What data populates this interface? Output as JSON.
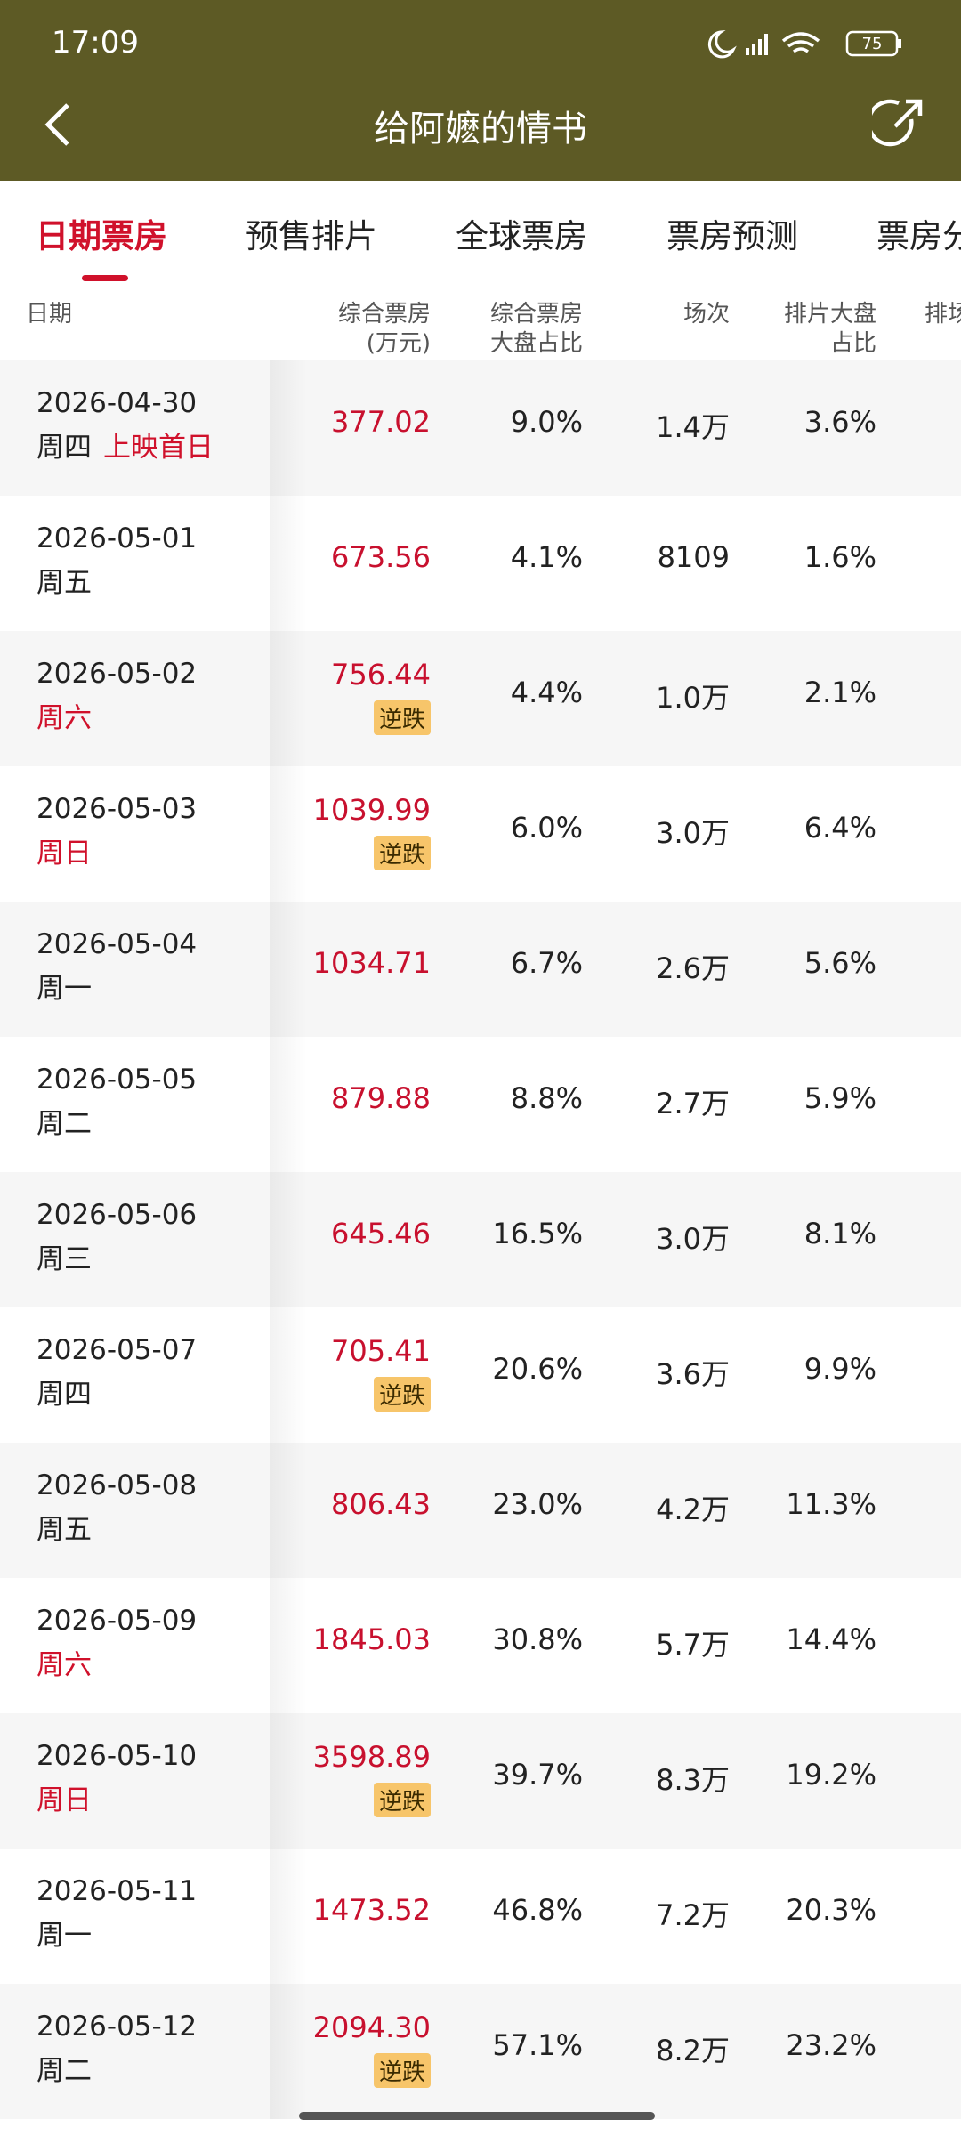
{
  "status_bar": {
    "time": "17:09",
    "battery": "75"
  },
  "header": {
    "title": "给阿嬷的情书"
  },
  "tabs": [
    "日期票房",
    "预售排片",
    "全球票房",
    "票房预测",
    "票房分"
  ],
  "table": {
    "columns": [
      [
        "日期"
      ],
      [
        "综合票房",
        "(万元)"
      ],
      [
        "综合票房",
        "大盘占比"
      ],
      [
        "场次"
      ],
      [
        "排片大盘",
        "占比"
      ],
      [
        "排场"
      ]
    ],
    "rows": [
      {
        "date": "2026-04-30",
        "weekday": "周四",
        "tag": "上映首日",
        "box_office": "377.02",
        "share": "9.0%",
        "screenings": "1.4万",
        "schedule_share": "3.6%"
      },
      {
        "date": "2026-05-01",
        "weekday": "周五",
        "box_office": "673.56",
        "share": "4.1%",
        "screenings": "8109",
        "schedule_share": "1.6%"
      },
      {
        "date": "2026-05-02",
        "weekday": "周六",
        "weekday_color": "#d0112b",
        "box_office": "756.44",
        "badge": "逆跌",
        "share": "4.4%",
        "screenings": "1.0万",
        "schedule_share": "2.1%"
      },
      {
        "date": "2026-05-03",
        "weekday": "周日",
        "weekday_color": "#d0112b",
        "box_office": "1039.99",
        "badge": "逆跌",
        "share": "6.0%",
        "screenings": "3.0万",
        "schedule_share": "6.4%"
      },
      {
        "date": "2026-05-04",
        "weekday": "周一",
        "box_office": "1034.71",
        "share": "6.7%",
        "screenings": "2.6万",
        "schedule_share": "5.6%"
      },
      {
        "date": "2026-05-05",
        "weekday": "周二",
        "box_office": "879.88",
        "share": "8.8%",
        "screenings": "2.7万",
        "schedule_share": "5.9%"
      },
      {
        "date": "2026-05-06",
        "weekday": "周三",
        "box_office": "645.46",
        "share": "16.5%",
        "screenings": "3.0万",
        "schedule_share": "8.1%"
      },
      {
        "date": "2026-05-07",
        "weekday": "周四",
        "box_office": "705.41",
        "badge": "逆跌",
        "share": "20.6%",
        "screenings": "3.6万",
        "schedule_share": "9.9%"
      },
      {
        "date": "2026-05-08",
        "weekday": "周五",
        "box_office": "806.43",
        "share": "23.0%",
        "screenings": "4.2万",
        "schedule_share": "11.3%"
      },
      {
        "date": "2026-05-09",
        "weekday": "周六",
        "weekday_color": "#d0112b",
        "box_office": "1845.03",
        "share": "30.8%",
        "screenings": "5.7万",
        "schedule_share": "14.4%"
      },
      {
        "date": "2026-05-10",
        "weekday": "周日",
        "weekday_color": "#d0112b",
        "box_office": "3598.89",
        "badge": "逆跌",
        "share": "39.7%",
        "screenings": "8.3万",
        "schedule_share": "19.2%"
      },
      {
        "date": "2026-05-11",
        "weekday": "周一",
        "box_office": "1473.52",
        "share": "46.8%",
        "screenings": "7.2万",
        "schedule_share": "20.3%"
      },
      {
        "date": "2026-05-12",
        "weekday": "周二",
        "box_office": "2094.30",
        "badge": "逆跌",
        "share": "57.1%",
        "screenings": "8.2万",
        "schedule_share": "23.2%"
      }
    ]
  }
}
